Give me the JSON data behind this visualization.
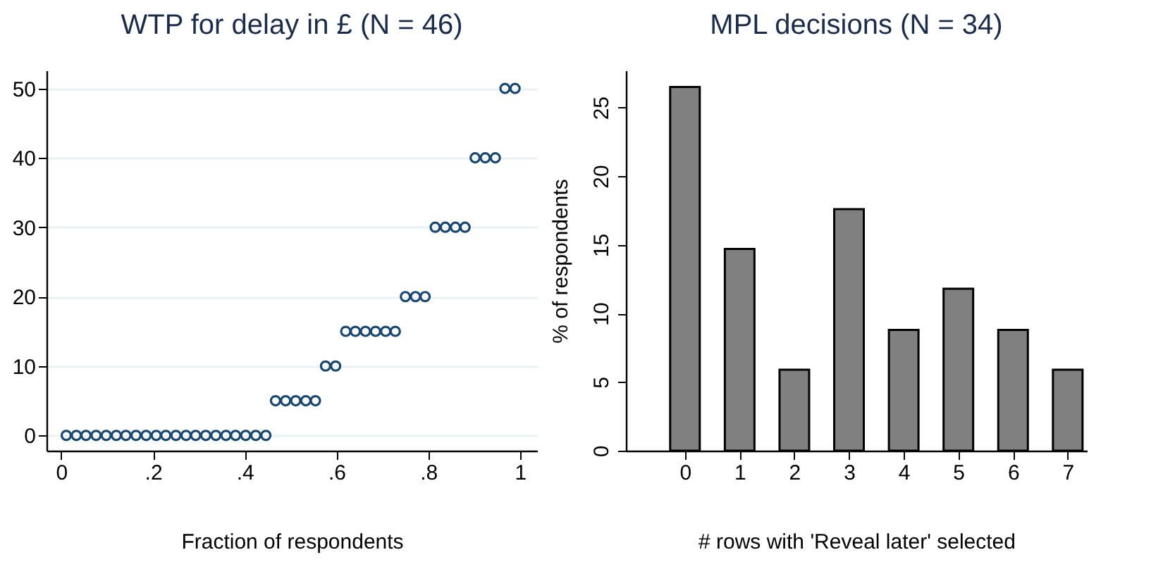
{
  "chart_data": [
    {
      "type": "scatter",
      "title": "WTP for delay in £ (N = 46)",
      "xlabel": "Fraction of respondents",
      "marker": "circle",
      "grid": "y",
      "xlim": [
        -0.032,
        1.037
      ],
      "ylim": [
        -2.2,
        52.6
      ],
      "xticks": [
        0,
        {
          "value": 0.2,
          "label": ".2"
        },
        {
          "value": 0.4,
          "label": ".4"
        },
        {
          "value": 0.6,
          "label": ".6"
        },
        {
          "value": 0.8,
          "label": ".8"
        },
        1
      ],
      "yticks": [
        0,
        10,
        20,
        30,
        40,
        50
      ],
      "x": [
        0.011,
        0.033,
        0.054,
        0.076,
        0.098,
        0.12,
        0.141,
        0.163,
        0.185,
        0.207,
        0.228,
        0.25,
        0.272,
        0.293,
        0.315,
        0.337,
        0.359,
        0.38,
        0.402,
        0.424,
        0.446,
        0.467,
        0.489,
        0.511,
        0.533,
        0.554,
        0.576,
        0.598,
        0.62,
        0.641,
        0.663,
        0.685,
        0.707,
        0.728,
        0.75,
        0.772,
        0.793,
        0.815,
        0.837,
        0.859,
        0.88,
        0.902,
        0.924,
        0.946,
        0.967,
        0.989
      ],
      "series": [
        {
          "color": "#1a476f",
          "values": [
            0,
            0,
            0,
            0,
            0,
            0,
            0,
            0,
            0,
            0,
            0,
            0,
            0,
            0,
            0,
            0,
            0,
            0,
            0,
            0,
            0,
            5,
            5,
            5,
            5,
            5,
            10,
            10,
            15,
            15,
            15,
            15,
            15,
            15,
            20,
            20,
            20,
            30,
            30,
            30,
            30,
            40,
            40,
            40,
            50,
            50
          ]
        }
      ]
    },
    {
      "type": "bar",
      "title": "MPL decisions (N = 34)",
      "xlabel": "# rows with 'Reveal later' selected",
      "ylabel": "% of respondents",
      "grid": false,
      "xlim": [
        -1.08,
        7.35
      ],
      "ylim": [
        0,
        27.7
      ],
      "xticks": [
        0,
        1,
        2,
        3,
        4,
        5,
        6,
        7
      ],
      "yticks": [
        0,
        5,
        10,
        15,
        20,
        25
      ],
      "x": [
        0,
        1,
        2,
        3,
        4,
        5,
        6,
        7
      ],
      "series": [
        {
          "color": "#808080",
          "values": [
            26.5,
            14.7,
            5.9,
            17.6,
            8.8,
            11.8,
            8.8,
            5.9
          ]
        }
      ]
    }
  ]
}
